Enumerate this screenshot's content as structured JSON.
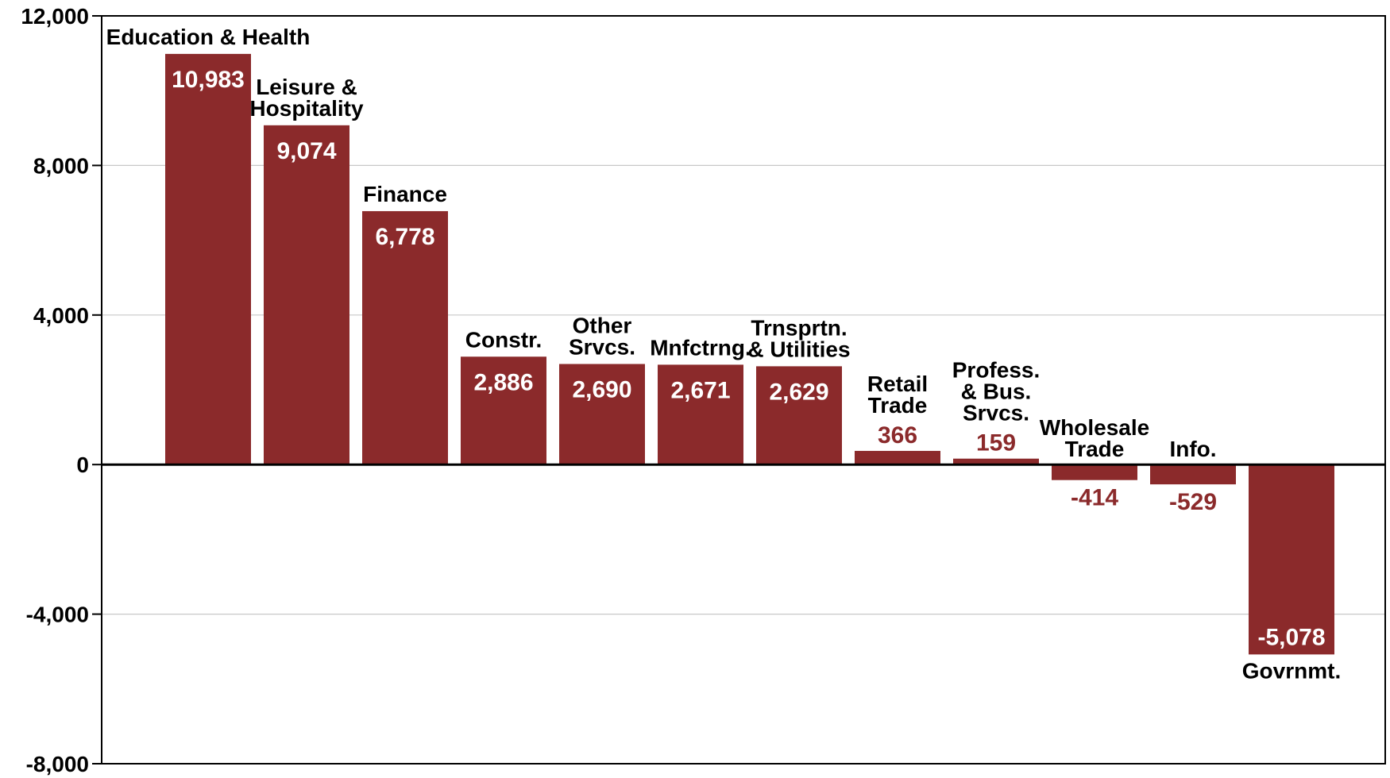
{
  "chart_data": {
    "type": "bar",
    "title": "",
    "xlabel": "",
    "ylabel": "",
    "ylim": [
      -8000,
      12000
    ],
    "yticks": [
      -8000,
      -4000,
      0,
      4000,
      8000,
      12000
    ],
    "ytick_labels": [
      "-8,000",
      "-4,000",
      "0",
      "4,000",
      "8,000",
      "12,000"
    ],
    "grid": true,
    "bar_color": "#8b2a2b",
    "categories": [
      [
        "Education & Health"
      ],
      [
        "Leisure &",
        "Hospitality"
      ],
      [
        "Finance"
      ],
      [
        "Constr."
      ],
      [
        "Other",
        "Srvcs."
      ],
      [
        "Mnfctrng."
      ],
      [
        "Trnsprtn.",
        "& Utilities"
      ],
      [
        "Retail",
        "Trade"
      ],
      [
        "Profess.",
        "& Bus.",
        "Srvcs."
      ],
      [
        "Wholesale",
        "Trade"
      ],
      [
        "Info."
      ],
      [
        "Govrnmt."
      ]
    ],
    "values": [
      10983,
      9074,
      6778,
      2886,
      2690,
      2671,
      2629,
      366,
      159,
      -414,
      -529,
      -5078
    ],
    "value_labels": [
      "10,983",
      "9,074",
      "6,778",
      "2,886",
      "2,690",
      "2,671",
      "2,629",
      "366",
      "159",
      "-414",
      "-529",
      "-5,078"
    ]
  }
}
